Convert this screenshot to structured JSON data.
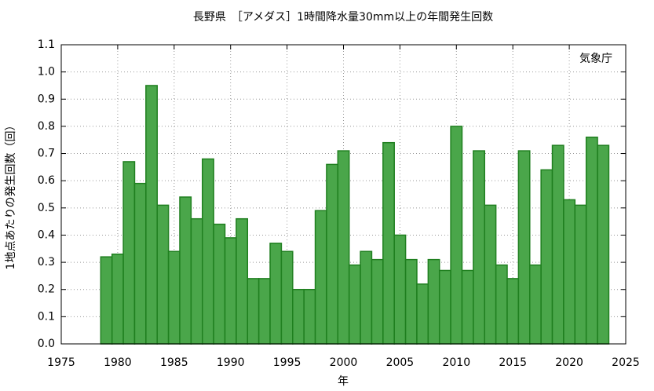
{
  "chart_data": {
    "type": "bar",
    "title": "長野県　［アメダス］1時間降水量30mm以上の年間発生回数",
    "xlabel": "年",
    "ylabel": "1地点あたりの発生回数（回）",
    "annotation": "気象庁",
    "x": [
      1979,
      1980,
      1981,
      1982,
      1983,
      1984,
      1985,
      1986,
      1987,
      1988,
      1989,
      1990,
      1991,
      1992,
      1993,
      1994,
      1995,
      1996,
      1997,
      1998,
      1999,
      2000,
      2001,
      2002,
      2003,
      2004,
      2005,
      2006,
      2007,
      2008,
      2009,
      2010,
      2011,
      2012,
      2013,
      2014,
      2015,
      2016,
      2017,
      2018,
      2019,
      2020,
      2021,
      2022,
      2023
    ],
    "values": [
      0.32,
      0.33,
      0.67,
      0.59,
      0.95,
      0.51,
      0.34,
      0.54,
      0.46,
      0.68,
      0.44,
      0.39,
      0.46,
      0.24,
      0.24,
      0.37,
      0.34,
      0.2,
      0.2,
      0.49,
      0.66,
      0.71,
      0.29,
      0.34,
      0.31,
      0.74,
      0.4,
      0.31,
      0.22,
      0.31,
      0.27,
      0.8,
      0.27,
      0.71,
      0.51,
      0.29,
      0.24,
      0.71,
      0.29,
      0.64,
      0.73,
      0.53,
      0.51,
      0.76,
      0.73
    ],
    "color": "#4aa64a",
    "edge_color": "#1f7f1f",
    "xlim": [
      1975,
      2025
    ],
    "xticks": [
      1975,
      1980,
      1985,
      1990,
      1995,
      2000,
      2005,
      2010,
      2015,
      2020,
      2025
    ],
    "ylim": [
      0,
      1.1
    ],
    "yticks": [
      {
        "value": 0,
        "label": "0.0"
      },
      0.1,
      0.2,
      0.3,
      0.4,
      0.5,
      0.6,
      0.7,
      0.8,
      0.9,
      {
        "value": 1,
        "label": "1.0"
      },
      1.1
    ],
    "grid": true
  }
}
